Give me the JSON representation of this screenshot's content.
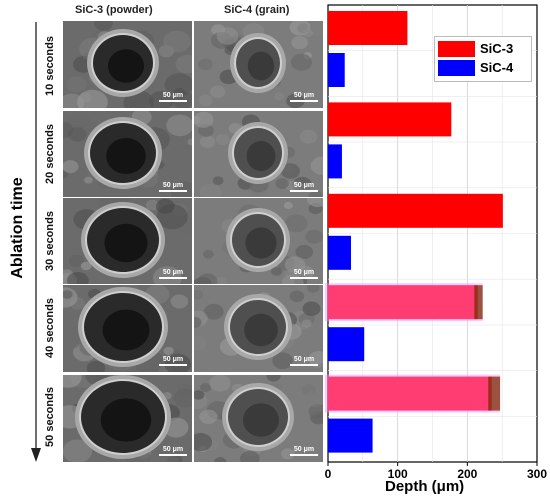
{
  "columns": [
    "SiC-3 (powder)",
    "SiC-4 (grain)"
  ],
  "rows": [
    "10 seconds",
    "20 seconds",
    "30 seconds",
    "40 seconds",
    "50 seconds"
  ],
  "scale_bar": "50 μm",
  "y_axis_title": "Ablation time",
  "chart_data": {
    "type": "bar",
    "orientation": "horizontal",
    "categories": [
      "10 seconds",
      "20 seconds",
      "30 seconds",
      "40 seconds",
      "50 seconds"
    ],
    "series": [
      {
        "name": "SiC-3",
        "values": [
          114,
          177,
          251,
          215,
          235
        ],
        "color": "#ff0000"
      },
      {
        "name": "SiC-4",
        "values": [
          24,
          20,
          33,
          52,
          64
        ],
        "color": "#0000ff"
      }
    ],
    "xlabel": "Depth (μm)",
    "xlim": [
      0,
      300
    ],
    "xticks": [
      "0",
      "100",
      "200",
      "300"
    ],
    "error_bars": {
      "color": "#ff88ff",
      "ranges": [
        null,
        null,
        null,
        [
          210,
          222
        ],
        [
          230,
          247
        ]
      ]
    },
    "grid": true,
    "legend_position": "top-right"
  }
}
